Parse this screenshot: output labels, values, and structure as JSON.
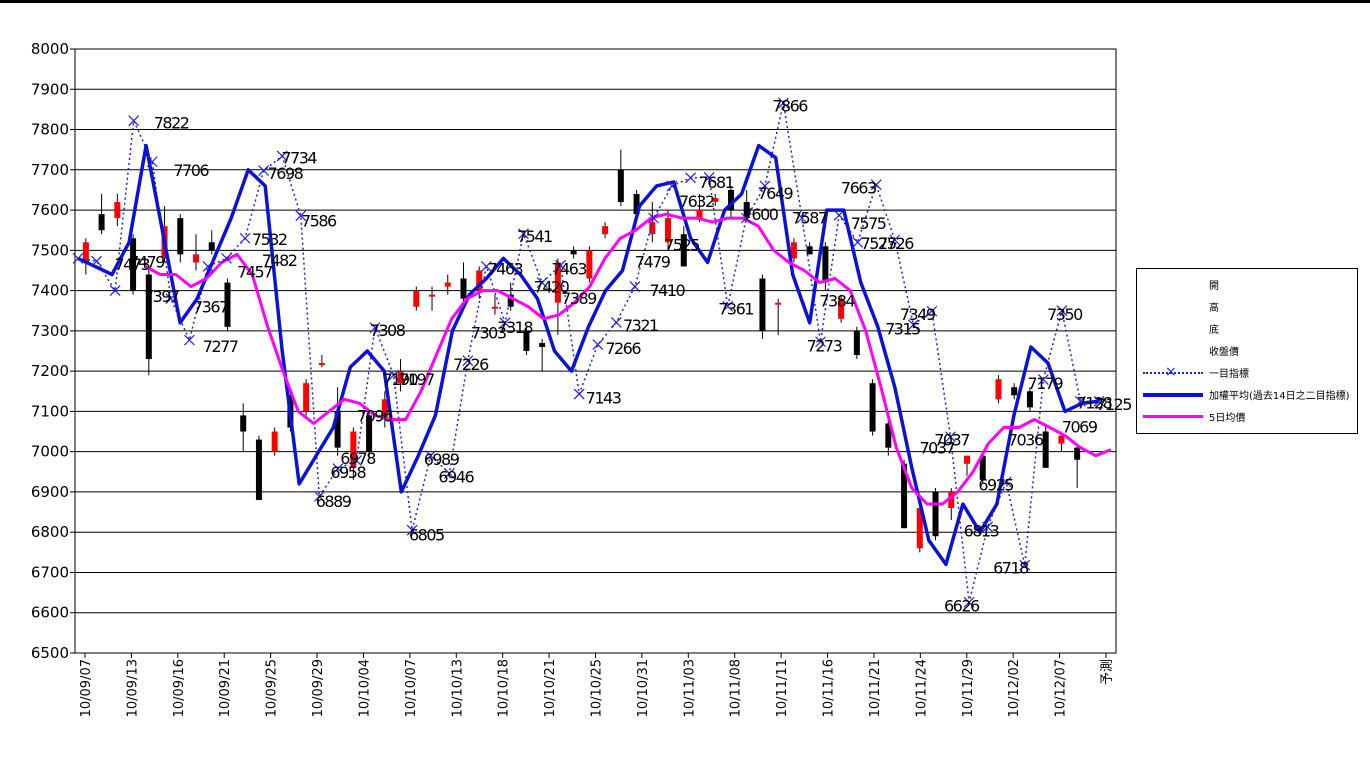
{
  "chart_data": {
    "type": "candlestick",
    "ylim": [
      6500,
      8000
    ],
    "y_ticks": [
      "8000",
      "7900",
      "7800",
      "7700",
      "7600",
      "7500",
      "7400",
      "7300",
      "7200",
      "7100",
      "7000",
      "6900",
      "6800",
      "6700",
      "6600",
      "6500"
    ],
    "x_tick_labels": [
      "10/09/07",
      "10/09/13",
      "10/09/16",
      "10/09/21",
      "10/09/25",
      "10/09/29",
      "10/10/04",
      "10/10/07",
      "10/10/13",
      "10/10/18",
      "10/10/21",
      "10/10/25",
      "10/10/31",
      "10/11/03",
      "10/11/08",
      "10/11/11",
      "10/11/16",
      "10/11/21",
      "10/11/24",
      "10/11/29",
      "10/12/02",
      "10/12/07",
      "予測"
    ],
    "legend": [
      "開",
      "高",
      "底",
      "收盤價",
      "一目指標",
      "加權平均(過去14日之二目指標)",
      "5日均價"
    ],
    "candles": [
      {
        "o": 7470,
        "h": 7530,
        "l": 7440,
        "c": 7520
      },
      {
        "o": 7590,
        "h": 7640,
        "l": 7540,
        "c": 7550
      },
      {
        "o": 7580,
        "h": 7640,
        "l": 7560,
        "c": 7620
      },
      {
        "o": 7530,
        "h": 7540,
        "l": 7390,
        "c": 7400
      },
      {
        "o": 7440,
        "h": 7460,
        "l": 7190,
        "c": 7230
      },
      {
        "o": 7480,
        "h": 7610,
        "l": 7470,
        "c": 7560
      },
      {
        "o": 7580,
        "h": 7590,
        "l": 7470,
        "c": 7490
      },
      {
        "o": 7470,
        "h": 7540,
        "l": 7450,
        "c": 7490
      },
      {
        "o": 7520,
        "h": 7550,
        "l": 7490,
        "c": 7500
      },
      {
        "o": 7420,
        "h": 7430,
        "l": 7300,
        "c": 7310
      },
      {
        "o": 7090,
        "h": 7120,
        "l": 7000,
        "c": 7050
      },
      {
        "o": 7030,
        "h": 7040,
        "l": 6880,
        "c": 6880
      },
      {
        "o": 7000,
        "h": 7060,
        "l": 6990,
        "c": 7050
      },
      {
        "o": 7140,
        "h": 7150,
        "l": 7050,
        "c": 7060
      },
      {
        "o": 7100,
        "h": 7180,
        "l": 7090,
        "c": 7170
      },
      {
        "o": 7220,
        "h": 7240,
        "l": 7210,
        "c": 7220
      },
      {
        "o": 7100,
        "h": 7160,
        "l": 6990,
        "c": 7010
      },
      {
        "o": 6960,
        "h": 7060,
        "l": 6930,
        "c": 7050
      },
      {
        "o": 7090,
        "h": 7100,
        "l": 6980,
        "c": 7000
      },
      {
        "o": 7080,
        "h": 7150,
        "l": 7060,
        "c": 7130
      },
      {
        "o": 7170,
        "h": 7230,
        "l": 7150,
        "c": 7200
      },
      {
        "o": 7360,
        "h": 7410,
        "l": 7350,
        "c": 7400
      },
      {
        "o": 7390,
        "h": 7410,
        "l": 7350,
        "c": 7390
      },
      {
        "o": 7410,
        "h": 7440,
        "l": 7390,
        "c": 7420
      },
      {
        "o": 7430,
        "h": 7470,
        "l": 7350,
        "c": 7380
      },
      {
        "o": 7400,
        "h": 7460,
        "l": 7380,
        "c": 7450
      },
      {
        "o": 7360,
        "h": 7390,
        "l": 7340,
        "c": 7360
      },
      {
        "o": 7390,
        "h": 7420,
        "l": 7350,
        "c": 7360
      },
      {
        "o": 7300,
        "h": 7310,
        "l": 7240,
        "c": 7250
      },
      {
        "o": 7270,
        "h": 7280,
        "l": 7200,
        "c": 7260
      },
      {
        "o": 7370,
        "h": 7480,
        "l": 7290,
        "c": 7470
      },
      {
        "o": 7500,
        "h": 7510,
        "l": 7480,
        "c": 7490
      },
      {
        "o": 7430,
        "h": 7510,
        "l": 7420,
        "c": 7500
      },
      {
        "o": 7540,
        "h": 7570,
        "l": 7530,
        "c": 7560
      },
      {
        "o": 7700,
        "h": 7750,
        "l": 7610,
        "c": 7620
      },
      {
        "o": 7640,
        "h": 7650,
        "l": 7580,
        "c": 7590
      },
      {
        "o": 7540,
        "h": 7620,
        "l": 7520,
        "c": 7570
      },
      {
        "o": 7520,
        "h": 7600,
        "l": 7500,
        "c": 7580
      },
      {
        "o": 7540,
        "h": 7560,
        "l": 7460,
        "c": 7460
      },
      {
        "o": 7580,
        "h": 7640,
        "l": 7570,
        "c": 7600
      },
      {
        "o": 7620,
        "h": 7640,
        "l": 7610,
        "c": 7630
      },
      {
        "o": 7650,
        "h": 7660,
        "l": 7580,
        "c": 7600
      },
      {
        "o": 7620,
        "h": 7650,
        "l": 7570,
        "c": 7580
      },
      {
        "o": 7430,
        "h": 7440,
        "l": 7280,
        "c": 7300
      },
      {
        "o": 7370,
        "h": 7380,
        "l": 7290,
        "c": 7370
      },
      {
        "o": 7480,
        "h": 7530,
        "l": 7470,
        "c": 7520
      },
      {
        "o": 7510,
        "h": 7520,
        "l": 7490,
        "c": 7490
      },
      {
        "o": 7510,
        "h": 7520,
        "l": 7400,
        "c": 7420
      },
      {
        "o": 7330,
        "h": 7390,
        "l": 7320,
        "c": 7380
      },
      {
        "o": 7300,
        "h": 7310,
        "l": 7230,
        "c": 7240
      },
      {
        "o": 7170,
        "h": 7180,
        "l": 7040,
        "c": 7050
      },
      {
        "o": 7070,
        "h": 7090,
        "l": 6990,
        "c": 7010
      },
      {
        "o": 6970,
        "h": 6980,
        "l": 6810,
        "c": 6810
      },
      {
        "o": 6760,
        "h": 6880,
        "l": 6750,
        "c": 6860
      },
      {
        "o": 6900,
        "h": 6910,
        "l": 6780,
        "c": 6790
      },
      {
        "o": 6860,
        "h": 6910,
        "l": 6830,
        "c": 6900
      },
      {
        "o": 6970,
        "h": 6990,
        "l": 6940,
        "c": 6990
      },
      {
        "o": 6990,
        "h": 7000,
        "l": 6920,
        "c": 6930
      },
      {
        "o": 7130,
        "h": 7190,
        "l": 7120,
        "c": 7180
      },
      {
        "o": 7160,
        "h": 7170,
        "l": 7130,
        "c": 7140
      },
      {
        "o": 7150,
        "h": 7160,
        "l": 7100,
        "c": 7110
      },
      {
        "o": 7050,
        "h": 7070,
        "l": 6960,
        "c": 6960
      },
      {
        "o": 7020,
        "h": 7050,
        "l": 7000,
        "c": 7040
      },
      {
        "o": 7010,
        "h": 7020,
        "l": 6910,
        "c": 6980
      }
    ],
    "series": [
      {
        "name": "一目指標",
        "values": [
          7480,
          7473,
          7400,
          7822,
          7720,
          7380,
          7277,
          7460,
          7480,
          7530,
          7698,
          7734,
          7586,
          6889,
          6958,
          6978,
          7308,
          7190,
          6805,
          6990,
          6946,
          7226,
          7460,
          7320,
          7541,
          7420,
          7463,
          7143,
          7266,
          7321,
          7410,
          7580,
          7660,
          7680,
          7681,
          7361,
          7580,
          7660,
          7866,
          7580,
          7273,
          7587,
          7520,
          7663,
          7526,
          7315,
          7349,
          7037,
          6626,
          6813,
          6925,
          6718,
          7179,
          7350,
          7125,
          7125
        ]
      },
      {
        "name": "加權平均(過去14日之二目指標)",
        "values": [
          7480,
          7460,
          7440,
          7520,
          7760,
          7540,
          7320,
          7380,
          7480,
          7580,
          7700,
          7660,
          7250,
          6920,
          6990,
          7060,
          7210,
          7250,
          7200,
          6900,
          6990,
          7090,
          7300,
          7390,
          7430,
          7480,
          7440,
          7380,
          7250,
          7200,
          7310,
          7400,
          7450,
          7610,
          7660,
          7670,
          7530,
          7470,
          7600,
          7640,
          7760,
          7730,
          7440,
          7320,
          7600,
          7600,
          7420,
          7310,
          7160,
          6960,
          6780,
          6720,
          6870,
          6800,
          6870,
          7090,
          7260,
          7220,
          7100,
          7120,
          7125
        ]
      },
      {
        "name": "5日均價",
        "values": [
          7460,
          7440,
          7440,
          7410,
          7430,
          7470,
          7490,
          7440,
          7310,
          7200,
          7100,
          7070,
          7100,
          7130,
          7120,
          7090,
          7080,
          7080,
          7150,
          7240,
          7330,
          7380,
          7400,
          7400,
          7380,
          7360,
          7330,
          7340,
          7370,
          7410,
          7480,
          7530,
          7550,
          7580,
          7590,
          7580,
          7580,
          7570,
          7580,
          7580,
          7560,
          7500,
          7470,
          7450,
          7420,
          7430,
          7400,
          7300,
          7160,
          7010,
          6910,
          6870,
          6870,
          6900,
          6950,
          7020,
          7060,
          7060,
          7080,
          7060,
          7040,
          7010,
          6990,
          7005
        ]
      }
    ],
    "data_labels": [
      {
        "text": "7473",
        "x": 3,
        "y": 7466
      },
      {
        "text": "7479",
        "x": 4.5,
        "y": 7472
      },
      {
        "text": "7397",
        "x": 6,
        "y": 7386
      },
      {
        "text": "7822",
        "x": 7,
        "y": 7818
      },
      {
        "text": "7706",
        "x": 9,
        "y": 7700
      },
      {
        "text": "7367",
        "x": 11,
        "y": 7360
      },
      {
        "text": "7277",
        "x": 12,
        "y": 7262
      },
      {
        "text": "7457",
        "x": 15.5,
        "y": 7448
      },
      {
        "text": "7532",
        "x": 17,
        "y": 7528
      },
      {
        "text": "7482",
        "x": 18,
        "y": 7476
      },
      {
        "text": "7698",
        "x": 18.6,
        "y": 7692
      },
      {
        "text": "7734",
        "x": 20,
        "y": 7730
      },
      {
        "text": "7586",
        "x": 22,
        "y": 7574
      },
      {
        "text": "6889",
        "x": 23.5,
        "y": 6878
      },
      {
        "text": "6958",
        "x": 25,
        "y": 6950
      },
      {
        "text": "6978",
        "x": 26,
        "y": 6984
      },
      {
        "text": "7096",
        "x": 27.7,
        "y": 7090
      },
      {
        "text": "7308",
        "x": 29,
        "y": 7302
      },
      {
        "text": "7190",
        "x": 30.3,
        "y": 7180
      },
      {
        "text": "7197",
        "x": 32,
        "y": 7180
      },
      {
        "text": "6805",
        "x": 33,
        "y": 6794
      },
      {
        "text": "6989",
        "x": 34.5,
        "y": 6982
      },
      {
        "text": "6946",
        "x": 36,
        "y": 6938
      },
      {
        "text": "7226",
        "x": 37.5,
        "y": 7218
      },
      {
        "text": "7303",
        "x": 39.3,
        "y": 7296
      },
      {
        "text": "7318",
        "x": 42,
        "y": 7310
      },
      {
        "text": "7463",
        "x": 41,
        "y": 7455
      },
      {
        "text": "7541",
        "x": 44,
        "y": 7535
      },
      {
        "text": "7420",
        "x": 45.7,
        "y": 7410
      },
      {
        "text": "7463",
        "x": 47.5,
        "y": 7455
      },
      {
        "text": "7389",
        "x": 48.5,
        "y": 7382
      },
      {
        "text": "7143",
        "x": 51,
        "y": 7134
      },
      {
        "text": "7266",
        "x": 53,
        "y": 7258
      },
      {
        "text": "7321",
        "x": 54.8,
        "y": 7314
      },
      {
        "text": "7479",
        "x": 56,
        "y": 7472
      },
      {
        "text": "7410",
        "x": 57.5,
        "y": 7402
      },
      {
        "text": "7525",
        "x": 59,
        "y": 7514
      },
      {
        "text": "7632",
        "x": 60.5,
        "y": 7622
      },
      {
        "text": "7681",
        "x": 62.5,
        "y": 7670
      },
      {
        "text": "7361",
        "x": 64.5,
        "y": 7356
      },
      {
        "text": "7600",
        "x": 67,
        "y": 7590
      },
      {
        "text": "7649",
        "x": 68.5,
        "y": 7642
      },
      {
        "text": "7866",
        "x": 70,
        "y": 7860
      },
      {
        "text": "7587",
        "x": 72,
        "y": 7582
      },
      {
        "text": "7273",
        "x": 73.5,
        "y": 7264
      },
      {
        "text": "7384",
        "x": 74.8,
        "y": 7376
      },
      {
        "text": "7663",
        "x": 77,
        "y": 7656
      },
      {
        "text": "7575",
        "x": 78,
        "y": 7568
      },
      {
        "text": "7527",
        "x": 79,
        "y": 7518
      },
      {
        "text": "7526",
        "x": 80.8,
        "y": 7518
      },
      {
        "text": "7315",
        "x": 81.5,
        "y": 7306
      },
      {
        "text": "7349",
        "x": 83,
        "y": 7342
      },
      {
        "text": "7037",
        "x": 85,
        "y": 7010
      },
      {
        "text": "7037",
        "x": 86.5,
        "y": 7030
      },
      {
        "text": "6626",
        "x": 87.5,
        "y": 6618
      },
      {
        "text": "6813",
        "x": 89.5,
        "y": 6804
      },
      {
        "text": "6925",
        "x": 91,
        "y": 6918
      },
      {
        "text": "6718",
        "x": 92.5,
        "y": 6712
      },
      {
        "text": "7036",
        "x": 94,
        "y": 7030
      },
      {
        "text": "7179",
        "x": 96,
        "y": 7170
      },
      {
        "text": "7350",
        "x": 98,
        "y": 7342
      },
      {
        "text": "7069",
        "x": 99.5,
        "y": 7062
      },
      {
        "text": "7128",
        "x": 101,
        "y": 7122
      },
      {
        "text": "7125",
        "x": 103,
        "y": 7118
      }
    ]
  },
  "colors": {
    "up": "#ff0000",
    "down": "#000000",
    "ichimoku": "#1f1fe6",
    "weighted": "#0b12d8",
    "ma5": "#ff00ff",
    "grid": "#000000"
  },
  "legend_items": [
    {
      "label": "開",
      "kind": "blank"
    },
    {
      "label": "高",
      "kind": "blank"
    },
    {
      "label": "底",
      "kind": "blank"
    },
    {
      "label": "收盤價",
      "kind": "blank"
    },
    {
      "label": "一目指標",
      "kind": "ichimoku"
    },
    {
      "label": "加權平均(過去14日之二目指標)",
      "kind": "weighted"
    },
    {
      "label": "5日均價",
      "kind": "ma5"
    }
  ]
}
